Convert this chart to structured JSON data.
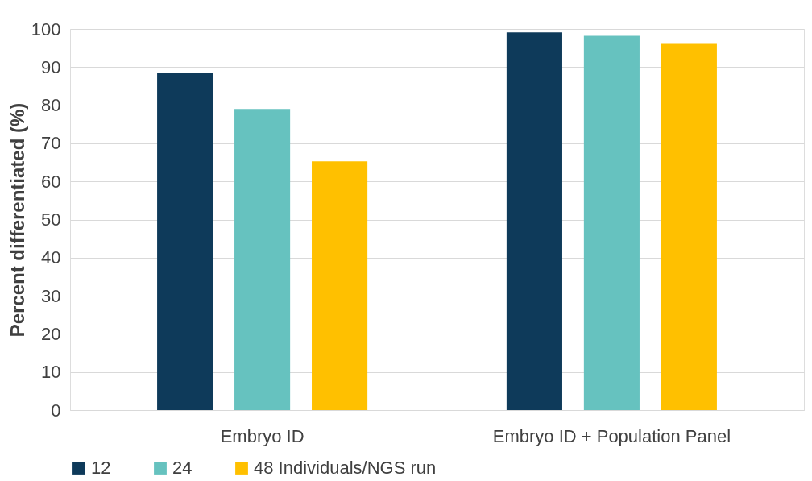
{
  "chart_data": {
    "type": "bar",
    "ylabel": "Percent differentiated (%)",
    "categories": [
      "Embryo ID",
      "Embryo ID + Population Panel"
    ],
    "series": [
      {
        "name": "12",
        "color": "#0e3a5a",
        "values": [
          88.6,
          99.1
        ]
      },
      {
        "name": "24",
        "color": "#66c2bf",
        "values": [
          79.0,
          98.2
        ]
      },
      {
        "name": "48 Individuals/NGS run",
        "color": "#ffc000",
        "values": [
          65.3,
          96.3
        ]
      }
    ],
    "ylim": [
      0,
      100
    ],
    "yticks": [
      0,
      10,
      20,
      30,
      40,
      50,
      60,
      70,
      80,
      90,
      100
    ],
    "grid": "y",
    "legend": "bottom"
  }
}
